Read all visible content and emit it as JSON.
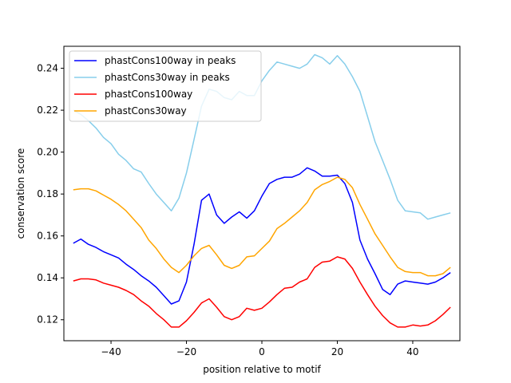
{
  "chart_data": {
    "type": "line",
    "title": "",
    "xlabel": "position relative to motif",
    "ylabel": "conservation score",
    "xlim": [
      -52.5,
      52.5
    ],
    "ylim": [
      0.11,
      0.2505
    ],
    "x_ticks": [
      -40,
      -20,
      0,
      20,
      40
    ],
    "y_ticks": [
      0.12,
      0.14,
      0.16,
      0.18,
      0.2,
      0.22,
      0.24
    ],
    "x_tick_labels": [
      "−40",
      "−20",
      "0",
      "20",
      "40"
    ],
    "y_tick_labels": [
      "0.12",
      "0.14",
      "0.16",
      "0.18",
      "0.20",
      "0.22",
      "0.24"
    ],
    "legend_position": "upper-left",
    "series": [
      {
        "name": "phastCons100way in peaks",
        "color": "#0000ff",
        "x": [
          -50,
          -48,
          -46,
          -44,
          -42,
          -40,
          -38,
          -36,
          -34,
          -32,
          -30,
          -28,
          -26,
          -24,
          -22,
          -20,
          -18,
          -16,
          -14,
          -12,
          -10,
          -8,
          -6,
          -4,
          -2,
          0,
          2,
          4,
          6,
          8,
          10,
          12,
          14,
          16,
          18,
          20,
          22,
          24,
          26,
          28,
          30,
          32,
          34,
          36,
          38,
          40,
          42,
          44,
          46,
          48,
          50
        ],
        "y": [
          0.1565,
          0.1585,
          0.156,
          0.1545,
          0.1525,
          0.151,
          0.1495,
          0.1465,
          0.144,
          0.141,
          0.1385,
          0.1355,
          0.1315,
          0.1275,
          0.129,
          0.138,
          0.156,
          0.177,
          0.18,
          0.17,
          0.166,
          0.169,
          0.1715,
          0.1685,
          0.172,
          0.179,
          0.185,
          0.187,
          0.188,
          0.188,
          0.1895,
          0.1925,
          0.191,
          0.1885,
          0.1885,
          0.189,
          0.185,
          0.176,
          0.158,
          0.149,
          0.142,
          0.1345,
          0.132,
          0.137,
          0.1385,
          0.138,
          0.1375,
          0.137,
          0.138,
          0.14,
          0.1425
        ]
      },
      {
        "name": "phastCons30way in peaks",
        "color": "#87ceeb",
        "x": [
          -50,
          -48,
          -46,
          -44,
          -42,
          -40,
          -38,
          -36,
          -34,
          -32,
          -30,
          -28,
          -26,
          -24,
          -22,
          -20,
          -18,
          -16,
          -14,
          -12,
          -10,
          -8,
          -6,
          -4,
          -2,
          0,
          2,
          4,
          6,
          8,
          10,
          12,
          14,
          16,
          18,
          20,
          22,
          24,
          26,
          28,
          30,
          32,
          34,
          36,
          38,
          40,
          42,
          44,
          46,
          48,
          50
        ],
        "y": [
          0.22,
          0.218,
          0.215,
          0.2115,
          0.207,
          0.204,
          0.199,
          0.196,
          0.192,
          0.1905,
          0.185,
          0.18,
          0.176,
          0.172,
          0.178,
          0.19,
          0.206,
          0.222,
          0.23,
          0.229,
          0.226,
          0.225,
          0.229,
          0.227,
          0.227,
          0.234,
          0.239,
          0.243,
          0.242,
          0.241,
          0.24,
          0.242,
          0.2465,
          0.245,
          0.242,
          0.246,
          0.242,
          0.236,
          0.229,
          0.217,
          0.205,
          0.196,
          0.187,
          0.177,
          0.172,
          0.1715,
          0.171,
          0.168,
          0.169,
          0.17,
          0.171
        ]
      },
      {
        "name": "phastCons100way",
        "color": "#ff0000",
        "x": [
          -50,
          -48,
          -46,
          -44,
          -42,
          -40,
          -38,
          -36,
          -34,
          -32,
          -30,
          -28,
          -26,
          -24,
          -22,
          -20,
          -18,
          -16,
          -14,
          -12,
          -10,
          -8,
          -6,
          -4,
          -2,
          0,
          2,
          4,
          6,
          8,
          10,
          12,
          14,
          16,
          18,
          20,
          22,
          24,
          26,
          28,
          30,
          32,
          34,
          36,
          38,
          40,
          42,
          44,
          46,
          48,
          50
        ],
        "y": [
          0.1385,
          0.1395,
          0.1395,
          0.139,
          0.1375,
          0.1365,
          0.1355,
          0.134,
          0.132,
          0.129,
          0.1265,
          0.123,
          0.12,
          0.1165,
          0.1165,
          0.1195,
          0.1235,
          0.128,
          0.13,
          0.126,
          0.1215,
          0.12,
          0.1215,
          0.1255,
          0.1245,
          0.1255,
          0.1285,
          0.132,
          0.135,
          0.1355,
          0.138,
          0.1395,
          0.145,
          0.1475,
          0.148,
          0.15,
          0.149,
          0.1445,
          0.138,
          0.132,
          0.1265,
          0.122,
          0.1185,
          0.1165,
          0.1165,
          0.1175,
          0.117,
          0.1175,
          0.1195,
          0.1225,
          0.126
        ]
      },
      {
        "name": "phastCons30way",
        "color": "#ffa500",
        "x": [
          -50,
          -48,
          -46,
          -44,
          -42,
          -40,
          -38,
          -36,
          -34,
          -32,
          -30,
          -28,
          -26,
          -24,
          -22,
          -20,
          -18,
          -16,
          -14,
          -12,
          -10,
          -8,
          -6,
          -4,
          -2,
          0,
          2,
          4,
          6,
          8,
          10,
          12,
          14,
          16,
          18,
          20,
          22,
          24,
          26,
          28,
          30,
          32,
          34,
          36,
          38,
          40,
          42,
          44,
          46,
          48,
          50
        ],
        "y": [
          0.182,
          0.1825,
          0.1825,
          0.1815,
          0.1795,
          0.1775,
          0.175,
          0.172,
          0.168,
          0.164,
          0.158,
          0.154,
          0.149,
          0.145,
          0.1425,
          0.146,
          0.1505,
          0.154,
          0.1555,
          0.151,
          0.146,
          0.1445,
          0.146,
          0.15,
          0.1505,
          0.154,
          0.1575,
          0.1635,
          0.166,
          0.169,
          0.172,
          0.176,
          0.182,
          0.1845,
          0.186,
          0.188,
          0.187,
          0.183,
          0.175,
          0.168,
          0.161,
          0.1555,
          0.15,
          0.145,
          0.143,
          0.1425,
          0.1425,
          0.141,
          0.141,
          0.142,
          0.145
        ]
      }
    ]
  }
}
